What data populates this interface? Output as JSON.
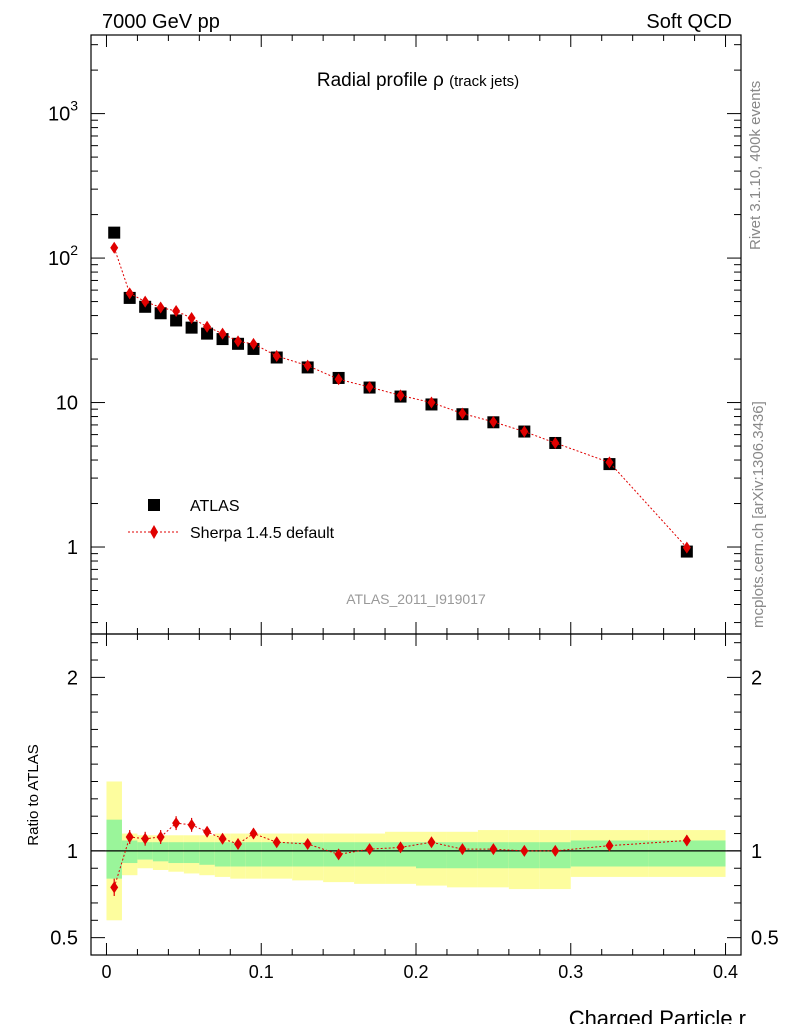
{
  "header": {
    "left": "7000 GeV pp",
    "right": "Soft QCD"
  },
  "side_text": {
    "rivet": "Rivet 3.1.10,  400k events",
    "mcplots": "mcplots.cern.ch [arXiv:1306.3436]"
  },
  "analysis_id": "ATLAS_2011_I919017",
  "colors": {
    "data": "#000000",
    "mc": "#e00000",
    "band_inner": "#9af59a",
    "band_outer": "#fdfd9e"
  },
  "chart_data": [
    {
      "type": "scatter",
      "title_main": "Radial profile",
      "title_symbol": "ρ",
      "title_sub": "(track jets)",
      "xlabel": "",
      "ylabel": "",
      "yscale": "log",
      "xlim": [
        -0.01,
        0.41
      ],
      "ylim": [
        0.25,
        3500
      ],
      "y_ticks": [
        {
          "value": 1000,
          "base": "10",
          "exp": "3"
        },
        {
          "value": 100,
          "base": "10",
          "exp": "2"
        },
        {
          "value": 10,
          "base": "10",
          "exp": ""
        },
        {
          "value": 1,
          "base": "1",
          "exp": ""
        }
      ],
      "legend": {
        "position": "lower-left",
        "data_label": "ATLAS",
        "mc_label": "Sherpa 1.4.5 default"
      },
      "series": [
        {
          "name": "ATLAS",
          "marker": "square",
          "x": [
            0.005,
            0.015,
            0.025,
            0.035,
            0.045,
            0.055,
            0.065,
            0.075,
            0.085,
            0.095,
            0.11,
            0.13,
            0.15,
            0.17,
            0.19,
            0.21,
            0.23,
            0.25,
            0.27,
            0.29,
            0.325,
            0.375
          ],
          "y": [
            150,
            53,
            46,
            41.5,
            37,
            33,
            30,
            27.5,
            25.5,
            23.5,
            20.5,
            17.5,
            14.8,
            12.7,
            11.0,
            9.7,
            8.3,
            7.3,
            6.3,
            5.25,
            3.75,
            0.93
          ]
        },
        {
          "name": "Sherpa 1.4.5 default",
          "marker": "diamond",
          "x": [
            0.005,
            0.015,
            0.025,
            0.035,
            0.045,
            0.055,
            0.065,
            0.075,
            0.085,
            0.095,
            0.11,
            0.13,
            0.15,
            0.17,
            0.19,
            0.21,
            0.23,
            0.25,
            0.27,
            0.29,
            0.325,
            0.375
          ],
          "y": [
            118,
            57,
            50,
            45.5,
            43,
            38.5,
            33.5,
            30,
            26.5,
            25.5,
            21,
            18,
            14.5,
            12.8,
            11.2,
            10.0,
            8.4,
            7.35,
            6.3,
            5.25,
            3.85,
            0.99
          ]
        }
      ]
    },
    {
      "type": "scatter",
      "title": "",
      "xlabel": "Charged Particle r",
      "ylabel": "Ratio to ATLAS",
      "xlim": [
        -0.01,
        0.41
      ],
      "ylim": [
        0.4,
        2.25
      ],
      "x_ticks": [
        0,
        0.1,
        0.2,
        0.3,
        0.4
      ],
      "x_tick_labels": [
        "0",
        "0.1",
        "0.2",
        "0.3",
        "0.4"
      ],
      "y_ticks": [
        0.5,
        1,
        2
      ],
      "y_tick_labels": [
        "0.5",
        "1",
        "2"
      ],
      "reference_line": 1,
      "bands": {
        "x_edges": [
          0,
          0.01,
          0.02,
          0.03,
          0.04,
          0.05,
          0.06,
          0.07,
          0.08,
          0.09,
          0.1,
          0.12,
          0.14,
          0.16,
          0.18,
          0.2,
          0.22,
          0.24,
          0.26,
          0.28,
          0.3,
          0.35,
          0.4
        ],
        "inner_lo": [
          0.84,
          0.93,
          0.95,
          0.94,
          0.93,
          0.93,
          0.92,
          0.91,
          0.91,
          0.91,
          0.91,
          0.91,
          0.91,
          0.91,
          0.91,
          0.9,
          0.9,
          0.9,
          0.9,
          0.9,
          0.91,
          0.91
        ],
        "inner_hi": [
          1.18,
          1.06,
          1.05,
          1.05,
          1.05,
          1.05,
          1.05,
          1.05,
          1.05,
          1.05,
          1.05,
          1.05,
          1.05,
          1.05,
          1.05,
          1.05,
          1.05,
          1.05,
          1.05,
          1.05,
          1.06,
          1.06
        ],
        "outer_lo": [
          0.6,
          0.86,
          0.9,
          0.89,
          0.88,
          0.87,
          0.86,
          0.85,
          0.84,
          0.84,
          0.84,
          0.83,
          0.82,
          0.81,
          0.81,
          0.8,
          0.79,
          0.79,
          0.78,
          0.78,
          0.85,
          0.85
        ],
        "outer_hi": [
          1.4,
          1.1,
          1.09,
          1.09,
          1.09,
          1.09,
          1.09,
          1.1,
          1.1,
          1.1,
          1.1,
          1.1,
          1.1,
          1.1,
          1.11,
          1.11,
          1.11,
          1.12,
          1.12,
          1.12,
          1.12,
          1.12
        ]
      },
      "series": [
        {
          "name": "Sherpa 1.4.5 default / ATLAS",
          "marker": "diamond",
          "x": [
            0.005,
            0.015,
            0.025,
            0.035,
            0.045,
            0.055,
            0.065,
            0.075,
            0.085,
            0.095,
            0.11,
            0.13,
            0.15,
            0.17,
            0.19,
            0.21,
            0.23,
            0.25,
            0.27,
            0.29,
            0.325,
            0.375
          ],
          "y": [
            0.79,
            1.08,
            1.07,
            1.08,
            1.16,
            1.15,
            1.11,
            1.07,
            1.04,
            1.1,
            1.05,
            1.04,
            0.98,
            1.01,
            1.02,
            1.05,
            1.01,
            1.01,
            1.0,
            1.0,
            1.03,
            1.06
          ],
          "err": [
            0.05,
            0.04,
            0.04,
            0.04,
            0.04,
            0.04,
            0.03,
            0.03,
            0.03,
            0.03,
            0.02,
            0.02,
            0.02,
            0.02,
            0.02,
            0.02,
            0.02,
            0.02,
            0.02,
            0.02,
            0.02,
            0.03
          ]
        }
      ]
    }
  ]
}
